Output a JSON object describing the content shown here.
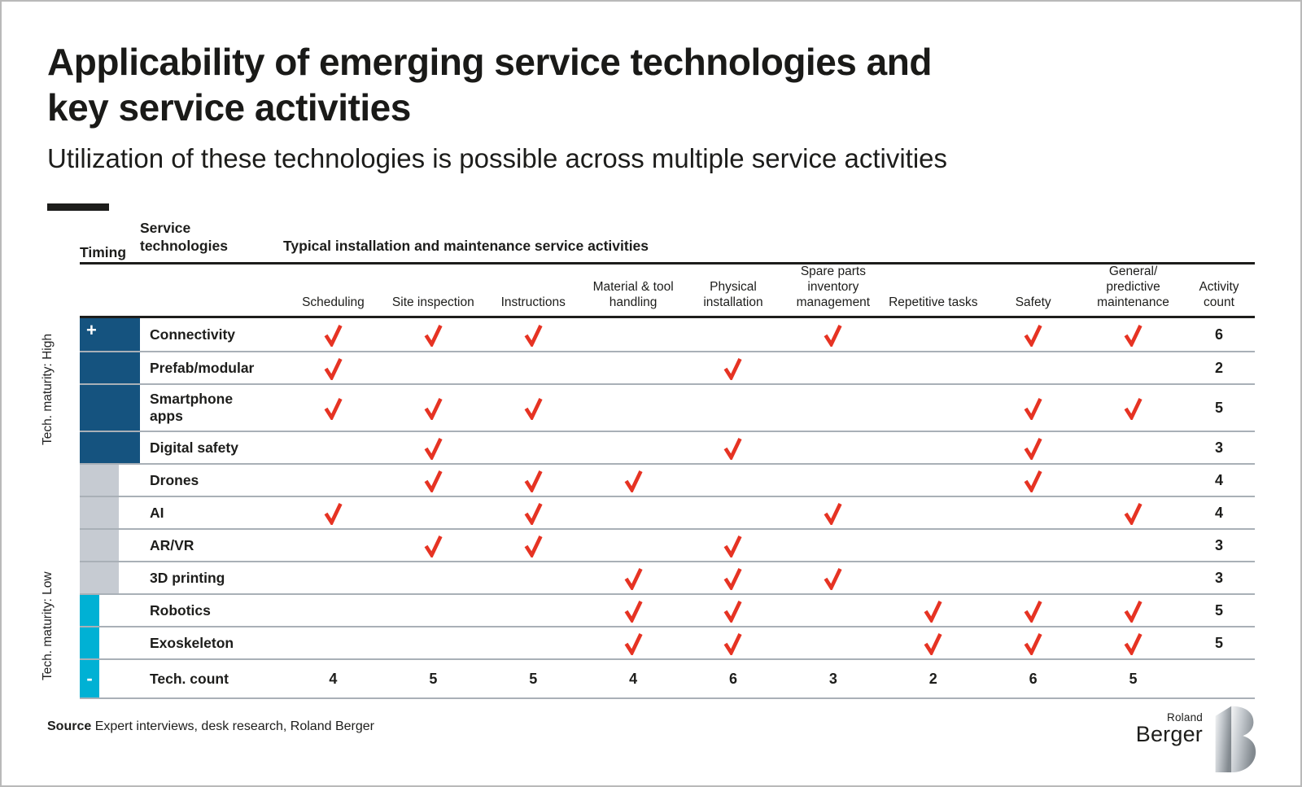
{
  "title_lines": [
    "Applicability of emerging service technologies and",
    "key service activities"
  ],
  "subtitle": "Utilization of these technologies is possible across multiple service activities",
  "maturity": {
    "high_label": "Tech. maturity: High",
    "low_label": "Tech. maturity: Low"
  },
  "timing": {
    "plus": "+",
    "minus": "-"
  },
  "chart_data": {
    "type": "table",
    "title": "Applicability of emerging service technologies and key service activities",
    "header": {
      "timing_label": "Timing",
      "service_tech_label": "Service technologies",
      "activities_label": "Typical installation and maintenance service activities",
      "columns": [
        "Scheduling",
        "Site inspection",
        "Instructions",
        "Material & tool handling",
        "Physical installation",
        "Spare parts inventory management",
        "Repetitive tasks",
        "Safety",
        "General/ predictive maintenance"
      ],
      "activity_count_label": "Activity count"
    },
    "rows": [
      {
        "tech": "Connectivity",
        "group": "high",
        "checks": [
          1,
          1,
          1,
          0,
          0,
          1,
          0,
          1,
          1
        ],
        "activity_count": 6
      },
      {
        "tech": "Prefab/modular",
        "group": "high",
        "checks": [
          1,
          0,
          0,
          0,
          1,
          0,
          0,
          0,
          0
        ],
        "activity_count": 2
      },
      {
        "tech": "Smartphone\napps",
        "group": "high",
        "checks": [
          1,
          1,
          1,
          0,
          0,
          0,
          0,
          1,
          1
        ],
        "activity_count": 5
      },
      {
        "tech": "Digital safety",
        "group": "high",
        "checks": [
          0,
          1,
          0,
          0,
          1,
          0,
          0,
          1,
          0
        ],
        "activity_count": 3
      },
      {
        "tech": "Drones",
        "group": "mid",
        "checks": [
          0,
          1,
          1,
          1,
          0,
          0,
          0,
          1,
          0
        ],
        "activity_count": 4
      },
      {
        "tech": "AI",
        "group": "mid",
        "checks": [
          1,
          0,
          1,
          0,
          0,
          1,
          0,
          0,
          1
        ],
        "activity_count": 4
      },
      {
        "tech": "AR/VR",
        "group": "mid",
        "checks": [
          0,
          1,
          1,
          0,
          1,
          0,
          0,
          0,
          0
        ],
        "activity_count": 3
      },
      {
        "tech": "3D printing",
        "group": "mid",
        "checks": [
          0,
          0,
          0,
          1,
          1,
          1,
          0,
          0,
          0
        ],
        "activity_count": 3
      },
      {
        "tech": "Robotics",
        "group": "low",
        "checks": [
          0,
          0,
          0,
          1,
          1,
          0,
          1,
          1,
          1
        ],
        "activity_count": 5
      },
      {
        "tech": "Exoskeleton",
        "group": "low",
        "checks": [
          0,
          0,
          0,
          1,
          1,
          0,
          1,
          1,
          1
        ],
        "activity_count": 5
      }
    ],
    "totals": {
      "label": "Tech. count",
      "values": [
        4,
        5,
        5,
        4,
        6,
        3,
        2,
        6,
        5
      ]
    }
  },
  "source": {
    "label": "Source",
    "text": "Expert interviews, desk research, Roland Berger"
  },
  "logo": {
    "line1": "Roland",
    "line2": "Berger"
  },
  "colors": {
    "check_red": "#e63323",
    "maturity_high_blue": "#15537f",
    "maturity_mid_gray": "#c6cbd2",
    "maturity_low_cyan": "#00b1d4",
    "divider_gray": "#a9b0b7"
  }
}
